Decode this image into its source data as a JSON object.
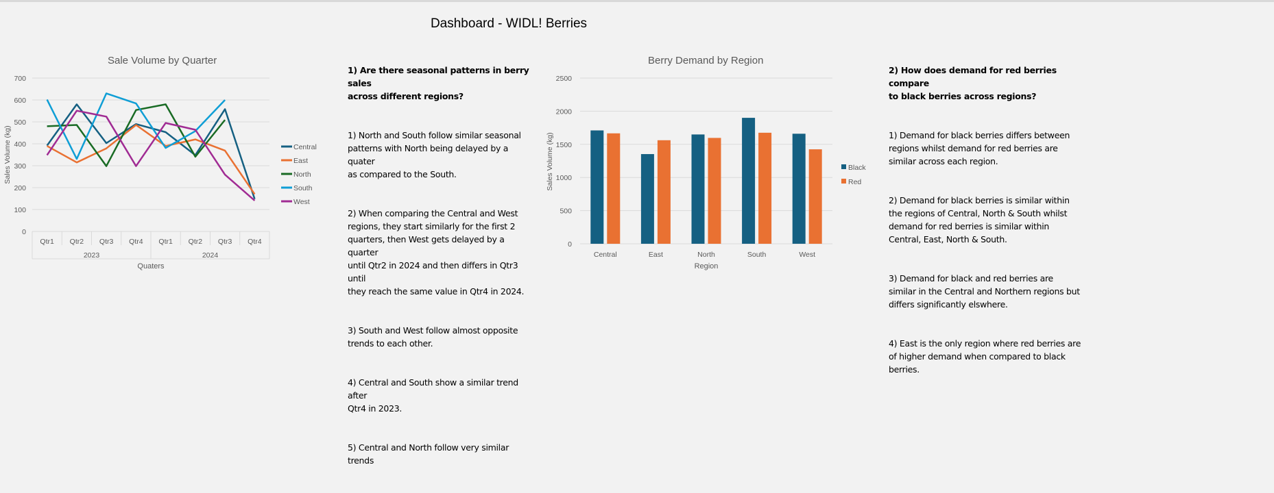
{
  "dashboard_title": "Dashboard - WIDL! Berries",
  "chart_data": [
    {
      "type": "line",
      "title": "Sale Volume by Quarter",
      "xlabel": "Quaters",
      "ylabel": "Sales Volume (kg)",
      "ylim": [
        0,
        700
      ],
      "yticks": [
        0,
        100,
        200,
        300,
        400,
        500,
        600,
        700
      ],
      "grid": true,
      "legend": "right",
      "categories": [
        "Qtr1",
        "Qtr2",
        "Qtr3",
        "Qtr4",
        "Qtr1",
        "Qtr2",
        "Qtr3",
        "Qtr4"
      ],
      "year_groups": [
        "2023",
        "2024"
      ],
      "series": [
        {
          "name": "Central",
          "color": "#156082",
          "values": [
            392,
            580,
            403,
            490,
            453,
            348,
            558,
            148
          ]
        },
        {
          "name": "East",
          "color": "#e97132",
          "values": [
            390,
            315,
            379,
            486,
            390,
            420,
            369,
            170
          ]
        },
        {
          "name": "North",
          "color": "#196b24",
          "values": [
            480,
            486,
            298,
            554,
            580,
            341,
            509,
            null
          ]
        },
        {
          "name": "South",
          "color": "#0f9ed5",
          "values": [
            602,
            331,
            630,
            584,
            381,
            458,
            600,
            null
          ]
        },
        {
          "name": "West",
          "color": "#a02b93",
          "values": [
            348,
            551,
            524,
            298,
            495,
            464,
            259,
            141
          ]
        }
      ]
    },
    {
      "type": "bar",
      "title": "Berry Demand by Region",
      "xlabel": "Region",
      "ylabel": "Sales Volume (kg)",
      "ylim": [
        0,
        2500
      ],
      "yticks": [
        0,
        500,
        1000,
        1500,
        2000,
        2500
      ],
      "grid": true,
      "legend": "right",
      "categories": [
        "Central",
        "East",
        "North",
        "South",
        "West"
      ],
      "series": [
        {
          "name": "Black",
          "color": "#156082",
          "values": [
            1710,
            1353,
            1649,
            1900,
            1660
          ]
        },
        {
          "name": "Red",
          "color": "#e97132",
          "values": [
            1666,
            1562,
            1597,
            1675,
            1425
          ]
        }
      ]
    }
  ],
  "notes1": {
    "question": "1) Are there seasonal patterns in berry sales\nacross different regions?",
    "points": [
      "1) North and South follow similar seasonal\npatterns with North being delayed by a quater\nas compared to the South.",
      "2) When comparing the Central and West\nregions, they start similarly for the first 2\nquarters, then West gets delayed by a quarter\nuntil Qtr2 in 2024 and then differs in Qtr3 until\nthey reach the same value in Qtr4 in 2024.",
      "3) South and West follow almost opposite\ntrends to each other.",
      "4) Central and South show a similar trend after\nQtr4 in 2023.",
      "5) Central and North follow very similar trends"
    ]
  },
  "notes2": {
    "question": "2) How does demand for red berries compare\nto black berries across regions?",
    "points": [
      "1) Demand for black berries differs between\nregions whilst demand for red berries are\nsimilar across each region.",
      "2) Demand for black berries is similar within\nthe regions of Central, North & South whilst\ndemand for red berries is similar within\nCentral, East, North & South.",
      "3) Demand for black and red berries are\nsimilar in the Central and Northern regions but\ndiffers significantly elswhere.",
      "4) East is the only region where red berries are\nof higher demand when compared to black\nberries."
    ]
  }
}
